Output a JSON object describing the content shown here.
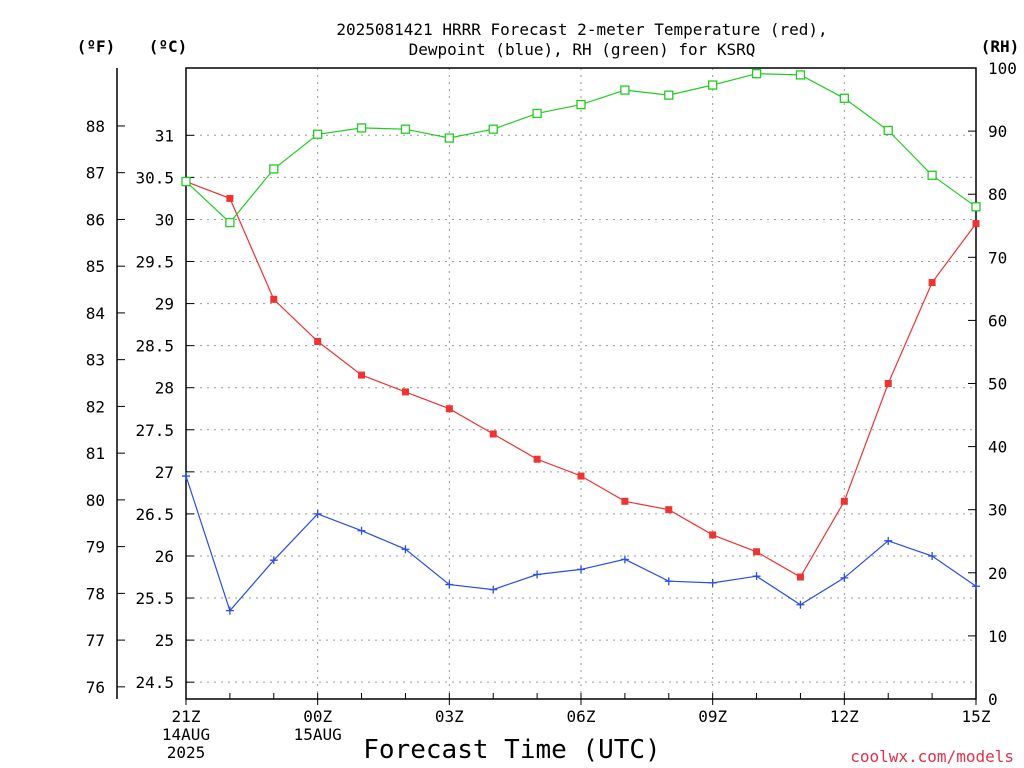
{
  "chart_data": {
    "type": "line",
    "title_line1": "2025081421 HRRR Forecast 2-meter Temperature (red),",
    "title_line2": "Dewpoint (blue), RH (green) for KSRQ",
    "unit_left_f": "(ºF)",
    "unit_left_c": "(ºC)",
    "unit_right": "(RH)",
    "xlabel": "Forecast Time (UTC)",
    "credit": "coolwx.com/models",
    "x_hours": [
      0,
      1,
      2,
      3,
      4,
      5,
      6,
      7,
      8,
      9,
      10,
      11,
      12,
      13,
      14,
      15,
      16,
      17,
      18
    ],
    "x_ticks": [
      {
        "hour": 0,
        "label": "21Z",
        "date1": "14AUG",
        "date2": "2025"
      },
      {
        "hour": 3,
        "label": "00Z",
        "date1": "15AUG",
        "date2": ""
      },
      {
        "hour": 6,
        "label": "03Z",
        "date1": "",
        "date2": ""
      },
      {
        "hour": 9,
        "label": "06Z",
        "date1": "",
        "date2": ""
      },
      {
        "hour": 12,
        "label": "09Z",
        "date1": "",
        "date2": ""
      },
      {
        "hour": 15,
        "label": "12Z",
        "date1": "",
        "date2": ""
      },
      {
        "hour": 18,
        "label": "15Z",
        "date1": "",
        "date2": ""
      }
    ],
    "y_c_range": [
      24.3,
      31.8
    ],
    "y_c_ticks": [
      24.5,
      25,
      25.5,
      26,
      26.5,
      27,
      27.5,
      28,
      28.5,
      29,
      29.5,
      30,
      30.5,
      31
    ],
    "y_f_ticks": [
      76,
      77,
      78,
      79,
      80,
      81,
      82,
      83,
      84,
      85,
      86,
      87,
      88
    ],
    "y_rh_range": [
      0,
      100
    ],
    "y_rh_ticks": [
      0,
      10,
      20,
      30,
      40,
      50,
      60,
      70,
      80,
      90,
      100
    ],
    "series": [
      {
        "key": "temperature",
        "unit": "C",
        "color": "#ee3333",
        "marker": "filled-square",
        "values": [
          30.45,
          30.25,
          29.05,
          28.55,
          28.15,
          27.95,
          27.75,
          27.45,
          27.15,
          26.95,
          26.65,
          26.55,
          26.25,
          26.05,
          25.75,
          26.65,
          28.05,
          29.25,
          29.95
        ]
      },
      {
        "key": "dewpoint",
        "unit": "C",
        "color": "#2b4ce6",
        "marker": "plus",
        "values": [
          26.95,
          25.35,
          25.95,
          26.5,
          26.3,
          26.08,
          25.66,
          25.6,
          25.78,
          25.84,
          25.96,
          25.7,
          25.68,
          25.76,
          25.42,
          25.74,
          26.18,
          26.0,
          25.64
        ]
      },
      {
        "key": "rh",
        "unit": "RH",
        "color": "#22cc22",
        "marker": "open-square",
        "values": [
          82,
          75.5,
          84,
          89.5,
          90.5,
          90.3,
          88.9,
          90.3,
          92.8,
          94.2,
          96.5,
          95.7,
          97.3,
          99.1,
          98.9,
          95.2,
          90.1,
          83,
          78
        ]
      }
    ]
  }
}
